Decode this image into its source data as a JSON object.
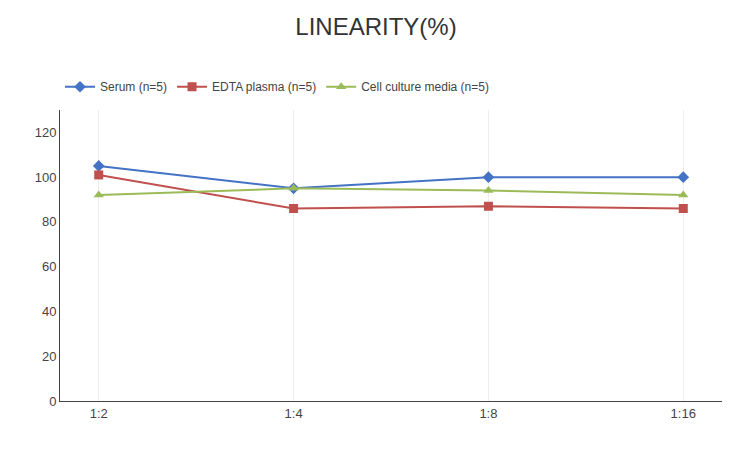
{
  "chart_data": {
    "type": "line",
    "title": "LINEARITY(%)",
    "categories": [
      "1:2",
      "1:4",
      "1:8",
      "1:16"
    ],
    "series": [
      {
        "name": "Serum (n=5)",
        "color": "#4472C4",
        "marker": "diamond",
        "values": [
          105,
          95,
          100,
          100
        ]
      },
      {
        "name": "EDTA plasma (n=5)",
        "color": "#C0504D",
        "marker": "square",
        "values": [
          101,
          86,
          87,
          86
        ]
      },
      {
        "name": "Cell culture media (n=5)",
        "color": "#9BBB59",
        "marker": "triangle-up",
        "values": [
          92,
          95,
          94,
          92
        ]
      }
    ],
    "ylim": [
      0,
      130
    ],
    "yticks": [
      0,
      20,
      40,
      60,
      80,
      100,
      120
    ],
    "grid": true,
    "legend": "upper left"
  }
}
